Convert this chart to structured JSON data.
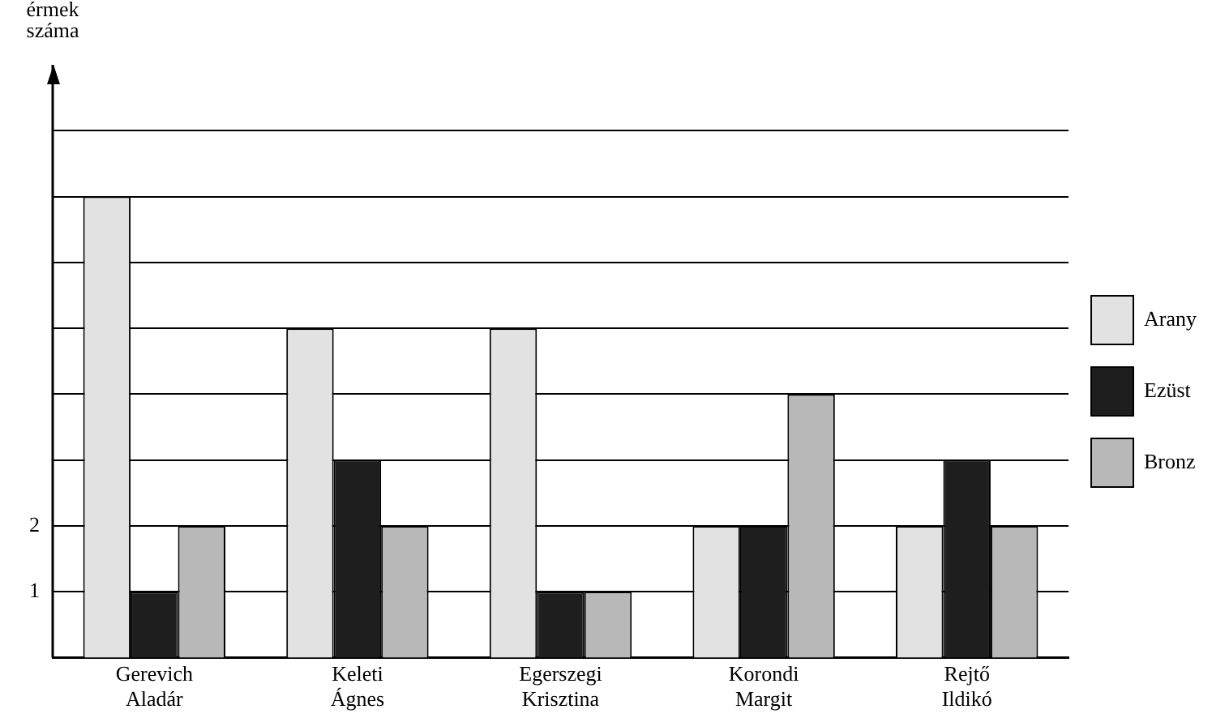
{
  "chart_data": {
    "type": "bar",
    "ylabel": "érmek száma",
    "categories": [
      "Gerevich Aladár",
      "Keleti Ágnes",
      "Egerszegi Krisztina",
      "Korondi Margit",
      "Rejtő Ildikó"
    ],
    "series": [
      {
        "name": "Arany",
        "color": "#e2e2e2",
        "values": [
          7,
          5,
          5,
          2,
          2
        ]
      },
      {
        "name": "Ezüst",
        "color": "#1e1e1e",
        "values": [
          1,
          3,
          1,
          2,
          3
        ]
      },
      {
        "name": "Bronz",
        "color": "#b8b8b8",
        "values": [
          2,
          2,
          1,
          4,
          2
        ]
      }
    ],
    "ylim": [
      0,
      9
    ],
    "yticks": [
      1,
      2,
      {
        "value": 3,
        "label": null
      },
      {
        "value": 4,
        "label": null
      },
      {
        "value": 5,
        "label": null
      },
      {
        "value": 6,
        "label": null
      },
      {
        "value": 7,
        "label": null
      },
      {
        "value": 8,
        "label": null
      }
    ],
    "grid": "y",
    "legend": "right"
  }
}
